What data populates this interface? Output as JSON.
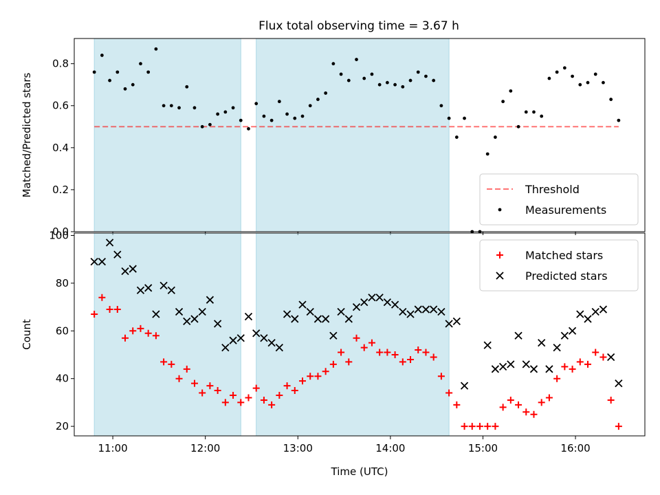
{
  "title": "Flux total observing time = 3.67 h",
  "colors": {
    "shade": "#add8e6",
    "threshold": "#ff0000",
    "measurements": "#000000",
    "matched": "#ff0000",
    "predicted": "#000000"
  },
  "chart_data": [
    {
      "type": "scatter",
      "ylabel": "Matched/Predicted stars",
      "xlabel": "",
      "xlim": [
        "10:35",
        "16:45"
      ],
      "ylim": [
        0,
        0.92
      ],
      "x_ticks": [
        "11:00",
        "12:00",
        "13:00",
        "14:00",
        "15:00",
        "16:00"
      ],
      "y_ticks": [
        "0.0",
        "0.2",
        "0.4",
        "0.6",
        "0.8"
      ],
      "shaded_intervals": [
        [
          "10:48",
          "12:23"
        ],
        [
          "12:33",
          "14:38"
        ]
      ],
      "legend_position": "lower right",
      "threshold": {
        "name": "Threshold",
        "value": 0.5,
        "x_range": [
          "10:48",
          "16:28"
        ],
        "style": "dashed"
      },
      "series": [
        {
          "name": "Measurements",
          "marker": "dot",
          "x": [
            "10:48",
            "10:53",
            "10:58",
            "11:03",
            "11:08",
            "11:13",
            "11:18",
            "11:23",
            "11:28",
            "11:33",
            "11:38",
            "11:43",
            "11:48",
            "11:53",
            "11:58",
            "12:03",
            "12:08",
            "12:13",
            "12:18",
            "12:23",
            "12:28",
            "12:33",
            "12:38",
            "12:43",
            "12:48",
            "12:53",
            "12:58",
            "13:03",
            "13:08",
            "13:13",
            "13:18",
            "13:23",
            "13:28",
            "13:33",
            "13:38",
            "13:43",
            "13:48",
            "13:53",
            "13:58",
            "14:03",
            "14:08",
            "14:13",
            "14:18",
            "14:23",
            "14:28",
            "14:33",
            "14:38",
            "14:43",
            "14:48",
            "14:53",
            "14:58",
            "15:03",
            "15:08",
            "15:13",
            "15:18",
            "15:23",
            "15:28",
            "15:33",
            "15:38",
            "15:43",
            "15:48",
            "15:53",
            "15:58",
            "16:03",
            "16:08",
            "16:13",
            "16:18",
            "16:23",
            "16:28"
          ],
          "y": [
            0.76,
            0.84,
            0.72,
            0.76,
            0.68,
            0.7,
            0.8,
            0.76,
            0.87,
            0.6,
            0.6,
            0.59,
            0.69,
            0.59,
            0.5,
            0.51,
            0.56,
            0.57,
            0.59,
            0.53,
            0.49,
            0.61,
            0.55,
            0.53,
            0.62,
            0.56,
            0.54,
            0.55,
            0.6,
            0.63,
            0.66,
            0.8,
            0.75,
            0.72,
            0.82,
            0.73,
            0.75,
            0.7,
            0.71,
            0.7,
            0.69,
            0.72,
            0.76,
            0.74,
            0.72,
            0.6,
            0.54,
            0.45,
            0.54,
            0.0,
            0.0,
            0.37,
            0.45,
            0.62,
            0.67,
            0.5,
            0.57,
            0.57,
            0.55,
            0.73,
            0.76,
            0.78,
            0.74,
            0.7,
            0.71,
            0.75,
            0.71,
            0.63,
            0.53
          ]
        }
      ]
    },
    {
      "type": "scatter",
      "ylabel": "Count",
      "xlabel": "Time (UTC)",
      "xlim": [
        "10:35",
        "16:45"
      ],
      "ylim": [
        16,
        101
      ],
      "x_ticks": [
        "11:00",
        "12:00",
        "13:00",
        "14:00",
        "15:00",
        "16:00"
      ],
      "y_ticks": [
        "20",
        "40",
        "60",
        "80",
        "100"
      ],
      "shaded_intervals": [
        [
          "10:48",
          "12:23"
        ],
        [
          "12:33",
          "14:38"
        ]
      ],
      "legend_position": "upper right",
      "series": [
        {
          "name": "Matched stars",
          "marker": "plus",
          "x": [
            "10:48",
            "10:53",
            "10:58",
            "11:03",
            "11:08",
            "11:13",
            "11:18",
            "11:23",
            "11:28",
            "11:33",
            "11:38",
            "11:43",
            "11:48",
            "11:53",
            "11:58",
            "12:03",
            "12:08",
            "12:13",
            "12:18",
            "12:23",
            "12:28",
            "12:33",
            "12:38",
            "12:43",
            "12:48",
            "12:53",
            "12:58",
            "13:03",
            "13:08",
            "13:13",
            "13:18",
            "13:23",
            "13:28",
            "13:33",
            "13:38",
            "13:43",
            "13:48",
            "13:53",
            "13:58",
            "14:03",
            "14:08",
            "14:13",
            "14:18",
            "14:23",
            "14:28",
            "14:33",
            "14:38",
            "14:43",
            "14:48",
            "14:53",
            "14:58",
            "15:03",
            "15:08",
            "15:13",
            "15:18",
            "15:23",
            "15:28",
            "15:33",
            "15:38",
            "15:43",
            "15:48",
            "15:53",
            "15:58",
            "16:03",
            "16:08",
            "16:13",
            "16:18",
            "16:23",
            "16:28"
          ],
          "y": [
            67,
            74,
            69,
            69,
            57,
            60,
            61,
            59,
            58,
            47,
            46,
            40,
            44,
            38,
            34,
            37,
            35,
            30,
            33,
            30,
            32,
            36,
            31,
            29,
            33,
            37,
            35,
            39,
            41,
            41,
            43,
            46,
            51,
            47,
            57,
            53,
            55,
            51,
            51,
            50,
            47,
            48,
            52,
            51,
            49,
            41,
            34,
            29,
            20,
            20,
            20,
            20,
            20,
            28,
            31,
            29,
            26,
            25,
            30,
            32,
            40,
            45,
            44,
            47,
            46,
            51,
            49,
            31,
            20
          ]
        },
        {
          "name": "Predicted stars",
          "marker": "x",
          "x": [
            "10:48",
            "10:53",
            "10:58",
            "11:03",
            "11:08",
            "11:13",
            "11:18",
            "11:23",
            "11:28",
            "11:33",
            "11:38",
            "11:43",
            "11:48",
            "11:53",
            "11:58",
            "12:03",
            "12:08",
            "12:13",
            "12:18",
            "12:23",
            "12:28",
            "12:33",
            "12:38",
            "12:43",
            "12:48",
            "12:53",
            "12:58",
            "13:03",
            "13:08",
            "13:13",
            "13:18",
            "13:23",
            "13:28",
            "13:33",
            "13:38",
            "13:43",
            "13:48",
            "13:53",
            "13:58",
            "14:03",
            "14:08",
            "14:13",
            "14:18",
            "14:23",
            "14:28",
            "14:33",
            "14:38",
            "14:43",
            "14:48",
            "14:53",
            "14:58",
            "15:03",
            "15:08",
            "15:13",
            "15:18",
            "15:23",
            "15:28",
            "15:33",
            "15:38",
            "15:43",
            "15:48",
            "15:53",
            "15:58",
            "16:03",
            "16:08",
            "16:13",
            "16:18",
            "16:23",
            "16:28"
          ],
          "y": [
            89,
            89,
            97,
            92,
            85,
            86,
            77,
            78,
            67,
            79,
            77,
            68,
            64,
            65,
            68,
            73,
            63,
            53,
            56,
            57,
            66,
            59,
            57,
            55,
            53,
            67,
            65,
            71,
            68,
            65,
            65,
            58,
            68,
            65,
            70,
            72,
            74,
            74,
            72,
            71,
            68,
            67,
            69,
            69,
            69,
            68,
            63,
            64,
            37,
            null,
            null,
            54,
            44,
            45,
            46,
            58,
            46,
            44,
            55,
            44,
            53,
            58,
            60,
            67,
            65,
            68,
            69,
            49,
            38
          ]
        }
      ]
    }
  ]
}
